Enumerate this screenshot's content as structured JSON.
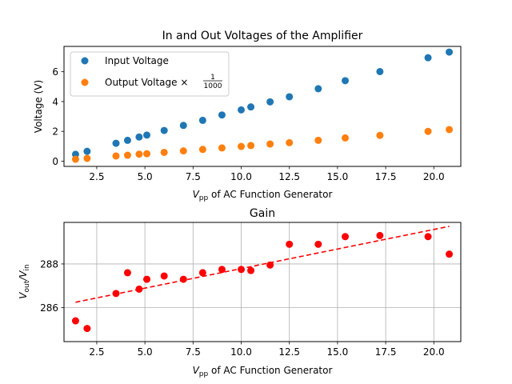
{
  "chart_data": [
    {
      "type": "scatter",
      "title": "In and Out Voltages of the Amplifier",
      "xlabel": {
        "main": "V",
        "sub": "pp",
        "rest": " of AC Function Generator"
      },
      "ylabel": "Voltage (V)",
      "xlim": [
        0.8,
        21.4
      ],
      "ylim": [
        -0.35,
        7.7
      ],
      "xticks": [
        2.5,
        5.0,
        7.5,
        10.0,
        12.5,
        15.0,
        17.5,
        20.0
      ],
      "xtick_labels": [
        "2.5",
        "5.0",
        "7.5",
        "10.0",
        "12.5",
        "15.0",
        "17.5",
        "20.0"
      ],
      "yticks": [
        0,
        2,
        4,
        6
      ],
      "ytick_labels": [
        "0",
        "2",
        "4",
        "6"
      ],
      "grid": false,
      "legend_position": "upper-left",
      "series": [
        {
          "name": "Input Voltage",
          "color": "#1f77b4",
          "x": [
            1.4,
            2.0,
            3.5,
            4.1,
            4.7,
            5.1,
            6.0,
            7.0,
            8.0,
            9.0,
            10.0,
            10.5,
            11.5,
            12.5,
            14.0,
            15.4,
            17.2,
            19.7,
            20.8
          ],
          "y": [
            0.46,
            0.66,
            1.2,
            1.4,
            1.62,
            1.75,
            2.06,
            2.4,
            2.74,
            3.1,
            3.44,
            3.64,
            3.98,
            4.32,
            4.86,
            5.4,
            6.01,
            6.94,
            7.32
          ]
        },
        {
          "name": "Output Voltage ×",
          "name_fraction": {
            "numerator": "1",
            "denominator": "1000"
          },
          "color": "#ff7f0e",
          "x": [
            1.4,
            2.0,
            3.5,
            4.1,
            4.7,
            5.1,
            6.0,
            7.0,
            8.0,
            9.0,
            10.0,
            10.5,
            11.5,
            12.5,
            14.0,
            15.4,
            17.2,
            19.7,
            20.8
          ],
          "y": [
            0.13,
            0.19,
            0.35,
            0.4,
            0.47,
            0.5,
            0.59,
            0.69,
            0.79,
            0.89,
            0.99,
            1.05,
            1.15,
            1.24,
            1.4,
            1.56,
            1.73,
            2.0,
            2.12
          ]
        }
      ]
    },
    {
      "type": "scatter",
      "title": "Gain",
      "xlabel": {
        "main": "V",
        "sub": "pp",
        "rest": " of AC Function Generator"
      },
      "ylabel": {
        "a": "V",
        "a_sub": "out",
        "b": "/V",
        "b_sub": "in"
      },
      "xlim": [
        0.8,
        21.4
      ],
      "ylim": [
        284.45,
        289.9
      ],
      "xticks": [
        2.5,
        5.0,
        7.5,
        10.0,
        12.5,
        15.0,
        17.5,
        20.0
      ],
      "xtick_labels": [
        "2.5",
        "5.0",
        "7.5",
        "10.0",
        "12.5",
        "15.0",
        "17.5",
        "20.0"
      ],
      "yticks": [
        286,
        288
      ],
      "ytick_labels": [
        "286",
        "288"
      ],
      "grid": true,
      "series": [
        {
          "color": "#ff0000",
          "x": [
            1.4,
            2.0,
            3.5,
            4.1,
            4.7,
            5.1,
            6.0,
            7.0,
            8.0,
            9.0,
            10.0,
            10.5,
            11.5,
            12.5,
            14.0,
            15.4,
            17.2,
            19.7,
            20.8
          ],
          "y": [
            285.4,
            285.05,
            286.65,
            287.6,
            286.85,
            287.3,
            287.45,
            287.3,
            287.6,
            287.75,
            287.75,
            287.7,
            287.95,
            288.9,
            288.9,
            289.25,
            289.3,
            289.25,
            288.45
          ]
        }
      ],
      "fit_line": {
        "color": "#ff0000",
        "style": "dashed",
        "x": [
          1.4,
          20.8
        ],
        "y": [
          286.25,
          289.72
        ]
      }
    }
  ]
}
